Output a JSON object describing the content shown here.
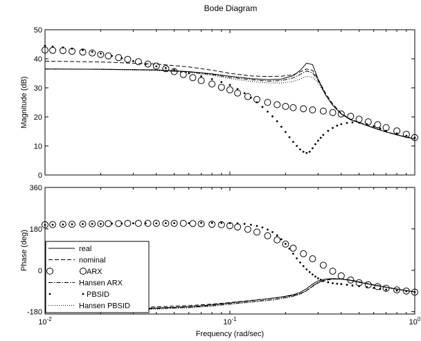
{
  "chart_data": {
    "type": "line",
    "title": "Bode Diagram",
    "xlabel": "Frequency  (rad/sec)",
    "xscale": "log",
    "xlim": [
      0.01,
      1
    ],
    "x_ticks": [
      0.01,
      0.1,
      1
    ],
    "x_tick_labels": [
      {
        "base": "10",
        "exp": "-2"
      },
      {
        "base": "10",
        "exp": "-1"
      },
      {
        "base": "10",
        "exp": "0"
      }
    ],
    "grid": false,
    "legend_position": "lower-left of phase panel",
    "panels": [
      {
        "name": "magnitude",
        "ylabel": "Magnitude (dB)",
        "ylim": [
          0,
          50
        ],
        "y_ticks": [
          0,
          10,
          20,
          30,
          40,
          50
        ],
        "series": [
          {
            "name": "real",
            "style": "solid",
            "x": [
              0.01,
              0.02,
              0.04,
              0.06,
              0.08,
              0.1,
              0.13,
              0.16,
              0.19,
              0.22,
              0.24,
              0.26,
              0.28,
              0.3,
              0.33,
              0.36,
              0.4,
              0.45,
              0.5,
              0.6,
              0.7,
              0.8,
              0.9,
              1.0
            ],
            "y": [
              36.5,
              36.4,
              36.2,
              35.6,
              34.8,
              34.0,
              33.2,
              32.8,
              33.0,
              34.2,
              36.0,
              38.5,
              38.0,
              33.0,
              27.5,
              24.0,
              21.0,
              19.0,
              18.0,
              16.2,
              14.8,
              13.8,
              13.0,
              12.4
            ]
          },
          {
            "name": "nominal",
            "style": "dashed",
            "x": [
              0.01,
              0.02,
              0.04,
              0.06,
              0.08,
              0.1,
              0.13,
              0.16,
              0.19,
              0.22,
              0.24,
              0.26,
              0.28,
              0.3,
              0.33,
              0.36,
              0.4,
              0.45,
              0.5,
              0.6,
              0.7,
              0.8,
              0.9,
              1.0
            ],
            "y": [
              39.2,
              38.9,
              38.2,
              37.2,
              36.1,
              35.0,
              34.1,
              33.9,
              34.0,
              34.5,
              35.5,
              36.5,
              36.0,
              33.0,
              28.0,
              24.5,
              21.2,
              19.2,
              18.1,
              16.3,
              14.9,
              13.9,
              13.1,
              12.5
            ]
          },
          {
            "name": "ARX",
            "style": "circle",
            "x": [
              0.01,
              0.011,
              0.0125,
              0.014,
              0.016,
              0.018,
              0.02,
              0.022,
              0.025,
              0.028,
              0.032,
              0.036,
              0.04,
              0.045,
              0.05,
              0.056,
              0.063,
              0.07,
              0.08,
              0.09,
              0.1,
              0.11,
              0.125,
              0.14,
              0.16,
              0.18,
              0.2,
              0.22,
              0.25,
              0.28,
              0.32,
              0.36,
              0.4,
              0.45,
              0.5,
              0.56,
              0.63,
              0.7,
              0.8,
              0.9,
              1.0
            ],
            "y": [
              43.0,
              42.9,
              42.8,
              42.6,
              42.3,
              42.0,
              41.5,
              41.0,
              40.4,
              39.8,
              39.0,
              38.2,
              37.5,
              36.6,
              35.6,
              34.6,
              33.5,
              32.5,
              31.3,
              30.2,
              29.3,
              28.2,
              27.0,
              26.0,
              25.0,
              24.2,
              23.6,
              23.2,
              22.8,
              22.4,
              22.0,
              21.5,
              21.0,
              20.2,
              19.2,
              18.3,
              17.3,
              16.3,
              15.2,
              14.0,
              12.9
            ]
          },
          {
            "name": "Hansen ARX",
            "style": "dashdot",
            "x": [
              0.01,
              0.02,
              0.04,
              0.06,
              0.08,
              0.1,
              0.13,
              0.16,
              0.19,
              0.22,
              0.24,
              0.26,
              0.28,
              0.3,
              0.33,
              0.36,
              0.4,
              0.45,
              0.5,
              0.6,
              0.7,
              0.8,
              0.9,
              1.0
            ],
            "y": [
              36.5,
              36.4,
              36.1,
              35.5,
              34.6,
              33.6,
              32.8,
              32.3,
              32.5,
              33.4,
              34.6,
              35.8,
              35.2,
              32.5,
              27.5,
              24.0,
              21.0,
              19.0,
              18.0,
              16.2,
              14.8,
              13.8,
              13.0,
              12.4
            ]
          },
          {
            "name": "PBSID",
            "style": "dots",
            "x": [
              0.01,
              0.011,
              0.0125,
              0.014,
              0.016,
              0.018,
              0.02,
              0.023,
              0.026,
              0.03,
              0.035,
              0.04,
              0.045,
              0.05,
              0.06,
              0.07,
              0.08,
              0.09,
              0.1,
              0.11,
              0.12,
              0.13,
              0.14,
              0.15,
              0.16,
              0.17,
              0.18,
              0.19,
              0.2,
              0.21,
              0.22,
              0.23,
              0.24,
              0.25,
              0.26,
              0.27,
              0.28,
              0.29,
              0.3,
              0.31,
              0.32,
              0.34,
              0.36,
              0.38,
              0.4,
              0.43,
              0.46,
              0.5,
              0.55,
              0.6,
              0.65,
              0.7,
              0.8,
              0.9,
              1.0
            ],
            "y": [
              44.5,
              44.2,
              43.9,
              43.5,
              43.0,
              42.4,
              41.8,
              41.0,
              40.2,
              39.2,
              38.2,
              37.4,
              36.8,
              36.2,
              35.0,
              34.0,
              33.0,
              32.0,
              31.0,
              29.6,
              28.2,
              26.6,
              25.0,
              23.4,
              21.8,
              20.2,
              18.5,
              16.6,
              14.8,
              13.0,
              11.4,
              10.0,
              8.8,
              8.0,
              7.6,
              8.0,
              9.2,
              10.6,
              11.8,
              12.8,
              13.8,
              15.2,
              16.2,
              17.0,
              17.5,
              17.9,
              18.1,
              18.0,
              17.5,
              16.8,
              16.0,
              15.2,
              14.3,
              13.5,
              12.8
            ]
          },
          {
            "name": "Hansen PBSID",
            "style": "dotted",
            "x": [
              0.01,
              0.02,
              0.04,
              0.06,
              0.08,
              0.1,
              0.13,
              0.16,
              0.19,
              0.22,
              0.24,
              0.26,
              0.28,
              0.3,
              0.33,
              0.36,
              0.4,
              0.45,
              0.5,
              0.6,
              0.7,
              0.8,
              0.9,
              1.0
            ],
            "y": [
              36.5,
              36.3,
              36.0,
              35.3,
              34.3,
              33.2,
              32.2,
              31.7,
              31.7,
              32.2,
              33.0,
              34.0,
              33.6,
              31.8,
              27.5,
              24.0,
              21.0,
              19.0,
              18.0,
              16.2,
              14.8,
              13.8,
              13.0,
              12.4
            ]
          }
        ]
      },
      {
        "name": "phase",
        "ylabel": "Phase (deg)",
        "ylim": [
          -190,
          360
        ],
        "y_ticks": [
          -180,
          0,
          180,
          360
        ],
        "series": [
          {
            "name": "real",
            "style": "solid",
            "x": [
              0.01,
              0.02,
              0.04,
              0.06,
              0.08,
              0.1,
              0.13,
              0.16,
              0.19,
              0.22,
              0.24,
              0.26,
              0.28,
              0.3,
              0.33,
              0.36,
              0.4,
              0.45,
              0.5,
              0.6,
              0.7,
              0.8,
              0.9,
              1.0
            ],
            "y": [
              -172,
              -170,
              -164,
              -158,
              -150,
              -142,
              -132,
              -124,
              -116,
              -106,
              -96,
              -80,
              -60,
              -46,
              -38,
              -36,
              -38,
              -44,
              -52,
              -64,
              -74,
              -82,
              -88,
              -94
            ]
          },
          {
            "name": "nominal",
            "style": "dashed",
            "x": [
              0.01,
              0.02,
              0.04,
              0.06,
              0.08,
              0.1,
              0.13,
              0.16,
              0.19,
              0.22,
              0.24,
              0.26,
              0.28,
              0.3,
              0.33,
              0.36,
              0.4,
              0.45,
              0.5,
              0.6,
              0.7,
              0.8,
              0.9,
              1.0
            ],
            "y": [
              -168,
              -165,
              -159,
              -153,
              -147,
              -140,
              -131,
              -124,
              -117,
              -109,
              -101,
              -88,
              -70,
              -55,
              -44,
              -38,
              -37,
              -42,
              -50,
              -63,
              -73,
              -81,
              -88,
              -94
            ]
          },
          {
            "name": "ARX",
            "style": "circle",
            "x": [
              0.01,
              0.011,
              0.0125,
              0.014,
              0.016,
              0.018,
              0.02,
              0.022,
              0.025,
              0.028,
              0.032,
              0.036,
              0.04,
              0.045,
              0.05,
              0.056,
              0.063,
              0.07,
              0.08,
              0.09,
              0.1,
              0.11,
              0.125,
              0.14,
              0.16,
              0.18,
              0.2,
              0.22,
              0.25,
              0.28,
              0.32,
              0.36,
              0.4,
              0.45,
              0.5,
              0.56,
              0.63,
              0.7,
              0.8,
              0.9,
              1.0
            ],
            "y": [
              198,
              199,
              200,
              200,
              201,
              202,
              202,
              203,
              203,
              204,
              204,
              204,
              204,
              204,
              204,
              204,
              203,
              202,
              200,
              198,
              194,
              188,
              178,
              166,
              150,
              132,
              114,
              96,
              72,
              50,
              22,
              -4,
              -24,
              -42,
              -54,
              -63,
              -71,
              -78,
              -85,
              -90,
              -95
            ]
          },
          {
            "name": "Hansen ARX",
            "style": "dashdot",
            "x": [
              0.01,
              0.02,
              0.04,
              0.06,
              0.08,
              0.1,
              0.13,
              0.16,
              0.19,
              0.22,
              0.24,
              0.26,
              0.28,
              0.3,
              0.33,
              0.36,
              0.4,
              0.45,
              0.5,
              0.6,
              0.7,
              0.8,
              0.9,
              1.0
            ],
            "y": [
              -174,
              -172,
              -167,
              -161,
              -154,
              -146,
              -137,
              -130,
              -122,
              -112,
              -102,
              -88,
              -68,
              -52,
              -42,
              -38,
              -38,
              -43,
              -51,
              -64,
              -74,
              -82,
              -88,
              -94
            ]
          },
          {
            "name": "PBSID",
            "style": "dots",
            "x": [
              0.01,
              0.011,
              0.0125,
              0.014,
              0.016,
              0.018,
              0.02,
              0.023,
              0.026,
              0.03,
              0.035,
              0.04,
              0.045,
              0.05,
              0.06,
              0.07,
              0.08,
              0.09,
              0.1,
              0.11,
              0.12,
              0.13,
              0.14,
              0.15,
              0.16,
              0.17,
              0.18,
              0.19,
              0.2,
              0.21,
              0.22,
              0.23,
              0.24,
              0.25,
              0.26,
              0.27,
              0.28,
              0.29,
              0.3,
              0.31,
              0.32,
              0.34,
              0.36,
              0.38,
              0.4,
              0.43,
              0.46,
              0.5,
              0.55,
              0.6,
              0.65,
              0.7,
              0.8,
              0.9,
              1.0
            ],
            "y": [
              197,
              198,
              199,
              200,
              201,
              202,
              202,
              203,
              203,
              204,
              204,
              204,
              205,
              205,
              205,
              206,
              206,
              206,
              205,
              204,
              202,
              198,
              193,
              186,
              177,
              166,
              152,
              135,
              115,
              94,
              72,
              52,
              34,
              18,
              4,
              -8,
              -18,
              -27,
              -35,
              -41,
              -46,
              -52,
              -56,
              -58,
              -60,
              -63,
              -66,
              -69,
              -73,
              -77,
              -81,
              -84,
              -88,
              -91,
              -95
            ]
          },
          {
            "name": "Hansen PBSID",
            "style": "dotted",
            "x": [
              0.01,
              0.02,
              0.04,
              0.06,
              0.08,
              0.1,
              0.13,
              0.16,
              0.19,
              0.22,
              0.24,
              0.26,
              0.28,
              0.3,
              0.33,
              0.36,
              0.4,
              0.45,
              0.5,
              0.6,
              0.7,
              0.8,
              0.9,
              1.0
            ],
            "y": [
              -176,
              -174,
              -169,
              -163,
              -156,
              -148,
              -139,
              -132,
              -124,
              -114,
              -104,
              -90,
              -70,
              -54,
              -43,
              -39,
              -39,
              -44,
              -51,
              -64,
              -74,
              -82,
              -88,
              -94
            ]
          }
        ]
      }
    ],
    "legend": [
      "real",
      "nominal",
      "ARX",
      "Hansen ARX",
      "PBSID",
      "Hansen PBSID"
    ]
  }
}
